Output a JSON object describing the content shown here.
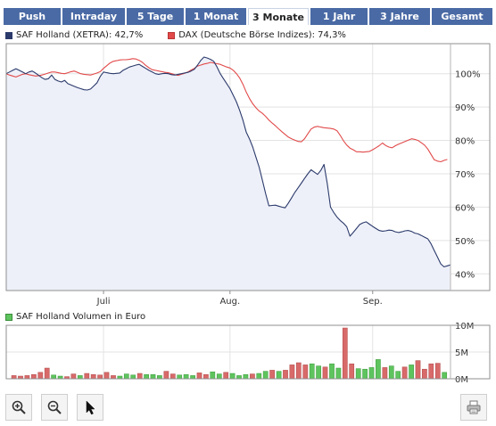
{
  "tabs": [
    {
      "label": "Push",
      "active": false
    },
    {
      "label": "Intraday",
      "active": false
    },
    {
      "label": "5 Tage",
      "active": false
    },
    {
      "label": "1 Monat",
      "active": false
    },
    {
      "label": "3 Monate",
      "active": true
    },
    {
      "label": "1 Jahr",
      "active": false
    },
    {
      "label": "3 Jahre",
      "active": false
    },
    {
      "label": "Gesamt",
      "active": false
    }
  ],
  "legend": [
    {
      "label": "SAF Holland (XETRA): 42,7%",
      "color": "#2b3a6b"
    },
    {
      "label": "DAX (Deutsche Börse Indizes): 74,3%",
      "color": "#e24a4a"
    }
  ],
  "volume_legend": {
    "label": "SAF Holland Volumen in Euro",
    "color": "#5ec45e"
  },
  "icons": [
    "zoom-in-icon",
    "zoom-out-icon",
    "cursor-icon",
    "print-icon"
  ],
  "chart_data": [
    {
      "type": "line",
      "x_ticks": [
        {
          "label": "Juli",
          "index": 30
        },
        {
          "label": "Aug.",
          "index": 69
        },
        {
          "label": "Sep.",
          "index": 113
        }
      ],
      "y_ticks": [
        "100%",
        "90%",
        "80%",
        "70%",
        "60%",
        "50%",
        "40%"
      ],
      "y_tick_values": [
        100,
        90,
        80,
        70,
        60,
        50,
        40
      ],
      "ylim": [
        35,
        109
      ],
      "grid": true,
      "legend_position": "top-left",
      "series": [
        {
          "name": "SAF Holland (XETRA): 42,7%",
          "color": "#2b3a6b",
          "fill": "#eef0f9",
          "values": [
            100,
            100.5,
            101,
            101.5,
            101,
            100.5,
            100,
            100.5,
            100.8,
            100.2,
            99.5,
            98.8,
            98.3,
            98.5,
            99.6,
            98.3,
            97.8,
            97.5,
            98,
            97,
            96.6,
            96.2,
            95.8,
            95.5,
            95.2,
            95.1,
            95.4,
            96.3,
            97.3,
            99.2,
            100.5,
            100.3,
            100.1,
            100,
            100.1,
            100.2,
            101,
            101.5,
            102,
            102.3,
            102.6,
            102.8,
            102.2,
            101.6,
            101,
            100.5,
            100,
            99.8,
            100,
            100.1,
            100,
            99.7,
            99.6,
            99.8,
            100,
            100.2,
            100.4,
            100.8,
            101.3,
            102.6,
            104,
            105,
            104.7,
            104.3,
            103.7,
            102,
            100,
            98.5,
            97,
            95.5,
            93.5,
            91.5,
            89,
            86,
            82.5,
            80.5,
            78,
            75,
            72,
            68,
            64,
            60.4,
            60.5,
            60.6,
            60.3,
            60,
            59.8,
            61.2,
            62.8,
            64.4,
            65.8,
            67.2,
            68.6,
            70,
            71.2,
            70.5,
            69.8,
            71,
            72.8,
            67,
            60,
            58.4,
            57,
            56,
            55.2,
            54.1,
            51.3,
            52.4,
            53.6,
            54.8,
            55.3,
            55.6,
            54.9,
            54.2,
            53.6,
            53,
            52.8,
            52.9,
            53.1,
            53,
            52.6,
            52.4,
            52.6,
            52.9,
            53,
            52.7,
            52.2,
            52,
            51.5,
            51,
            50.5,
            49,
            47,
            45,
            43,
            42.1,
            42.4,
            42.7
          ]
        },
        {
          "name": "DAX (Deutsche Börse Indizes): 74,3%",
          "color": "#e24a4a",
          "fill": "",
          "values": [
            100,
            99.6,
            99.3,
            99,
            99.4,
            99.8,
            100,
            99.7,
            99.5,
            99.3,
            99.4,
            99.6,
            99.9,
            100.2,
            100.5,
            100.5,
            100.3,
            100.1,
            100,
            100.3,
            100.6,
            100.8,
            100.4,
            100,
            99.8,
            99.7,
            99.6,
            99.9,
            100.2,
            100.6,
            101.6,
            102.4,
            103.2,
            103.7,
            103.9,
            104.1,
            104.2,
            104.2,
            104.3,
            104.5,
            104.4,
            104,
            103.4,
            102.5,
            101.8,
            101.2,
            101,
            100.8,
            100.6,
            100.4,
            100.3,
            100,
            99.7,
            99.5,
            99.8,
            100.1,
            100.5,
            101.1,
            101.6,
            102.3,
            102.6,
            102.9,
            103.1,
            103.4,
            103.2,
            103,
            102.8,
            102.4,
            102,
            101.7,
            101,
            100,
            98.7,
            96.8,
            94.5,
            92.6,
            91,
            89.8,
            88.8,
            88.1,
            87.2,
            86.1,
            85.2,
            84.4,
            83.5,
            82.6,
            81.8,
            81,
            80.5,
            80.1,
            79.7,
            79.6,
            80.5,
            82,
            83.4,
            84,
            84.2,
            84,
            83.8,
            83.7,
            83.6,
            83.4,
            82.9,
            81.5,
            79.9,
            78.6,
            77.7,
            77.2,
            76.6,
            76.6,
            76.5,
            76.6,
            76.7,
            77.2,
            77.8,
            78.4,
            79.2,
            78.5,
            78,
            77.8,
            78.4,
            78.9,
            79.3,
            79.7,
            80.1,
            80.5,
            80.3,
            80,
            79.3,
            78.6,
            77.4,
            75.8,
            74.2,
            73.8,
            73.6,
            74,
            74.3
          ]
        }
      ]
    },
    {
      "type": "bar",
      "name": "SAF Holland Volumen in Euro",
      "y_ticks": [
        "10M",
        "5M",
        "0M"
      ],
      "y_tick_values": [
        10,
        5,
        0
      ],
      "ylim": [
        0,
        10
      ],
      "unit": "M EUR",
      "values": [
        0.6,
        0.5,
        0.6,
        0.8,
        1.2,
        2.0,
        0.7,
        0.5,
        0.4,
        0.9,
        0.6,
        1.0,
        0.8,
        0.7,
        1.2,
        0.6,
        0.5,
        0.9,
        0.7,
        1.0,
        0.8,
        0.8,
        0.6,
        1.4,
        0.9,
        0.7,
        0.8,
        0.6,
        1.1,
        0.8,
        1.3,
        0.9,
        1.2,
        1.0,
        0.6,
        0.8,
        0.9,
        1.0,
        1.4,
        1.6,
        1.4,
        1.6,
        2.6,
        3.0,
        2.6,
        2.8,
        2.4,
        2.2,
        2.8,
        2.0,
        9.5,
        2.8,
        1.9,
        1.8,
        2.1,
        3.6,
        2.1,
        2.4,
        1.4,
        2.2,
        2.6,
        3.4,
        1.8,
        2.8,
        2.9,
        1.2
      ],
      "colors": [
        "r",
        "r",
        "r",
        "r",
        "r",
        "r",
        "g",
        "g",
        "r",
        "r",
        "g",
        "r",
        "r",
        "r",
        "r",
        "r",
        "g",
        "g",
        "g",
        "r",
        "g",
        "g",
        "g",
        "r",
        "r",
        "g",
        "g",
        "g",
        "r",
        "r",
        "g",
        "g",
        "r",
        "g",
        "g",
        "g",
        "r",
        "g",
        "g",
        "r",
        "g",
        "r",
        "r",
        "r",
        "r",
        "g",
        "g",
        "r",
        "g",
        "g",
        "r",
        "r",
        "g",
        "g",
        "g",
        "g",
        "r",
        "g",
        "g",
        "r",
        "g",
        "r",
        "r",
        "r",
        "r",
        "g"
      ]
    }
  ]
}
